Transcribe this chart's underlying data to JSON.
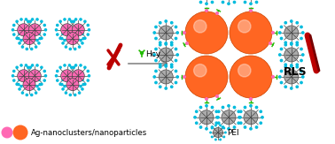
{
  "bg_color": "#ffffff",
  "pink_color": "#FF69B4",
  "orange_color": "#FF6622",
  "dark_gray": "#444444",
  "mid_gray": "#888888",
  "light_gray": "#aaaaaa",
  "cyan_color": "#00BBDD",
  "green_color": "#22BB00",
  "red_color": "#BB0000",
  "legend_text": "Ag-nanoclusters/nanoparticles",
  "pei_text": "PEI",
  "hcy_text": "Hcy",
  "rls_text": "RLS",
  "fig_width": 3.78,
  "fig_height": 1.63,
  "dpi": 100
}
